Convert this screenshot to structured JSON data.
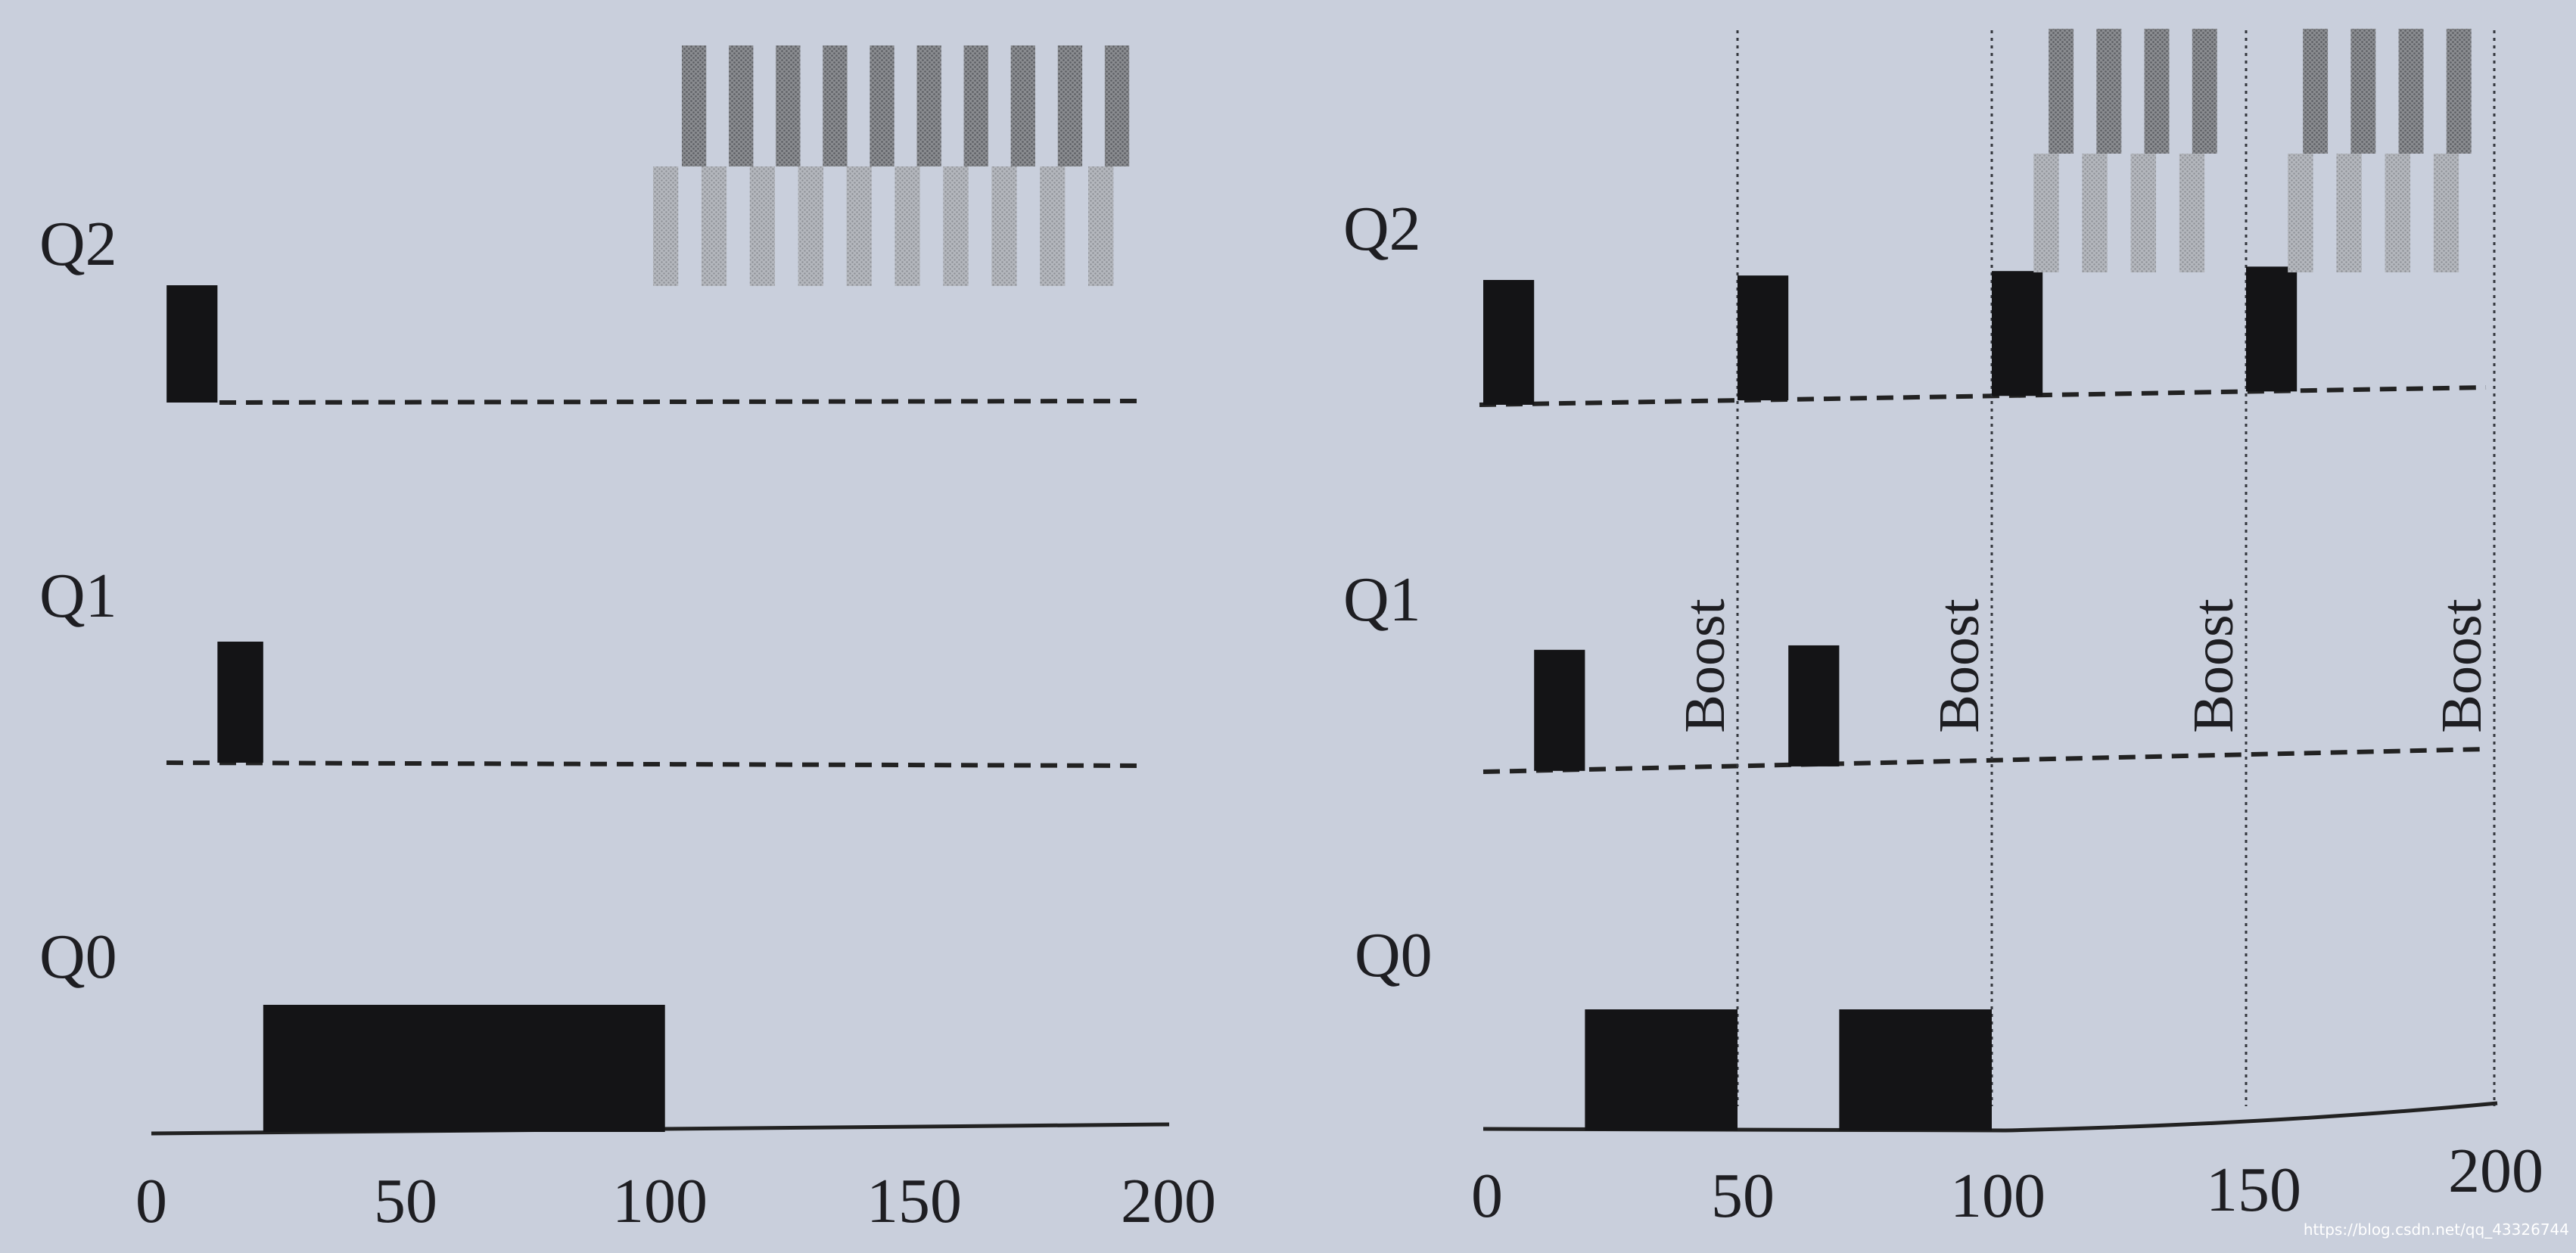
{
  "panels": [
    {
      "id": "without-boost",
      "queues": [
        "Q2",
        "Q1",
        "Q0"
      ],
      "x_axis": {
        "ticks": [
          "0",
          "50",
          "100",
          "150",
          "200"
        ],
        "range": [
          0,
          200
        ]
      },
      "jobs": [
        {
          "queue": "Q2",
          "start": 3,
          "end": 13
        },
        {
          "queue": "Q1",
          "start": 13,
          "end": 22
        },
        {
          "queue": "Q0",
          "start": 22,
          "end": 101
        }
      ],
      "cpu_bound_blocks": {
        "start": 100,
        "end": 198
      },
      "boosts": []
    },
    {
      "id": "with-boost",
      "queues": [
        "Q2",
        "Q1",
        "Q0"
      ],
      "x_axis": {
        "ticks": [
          "0",
          "50",
          "100",
          "150",
          "200"
        ],
        "range": [
          0,
          200
        ]
      },
      "jobs": [
        {
          "queue": "Q2",
          "start": 0,
          "end": 10
        },
        {
          "queue": "Q1",
          "start": 10,
          "end": 20
        },
        {
          "queue": "Q0",
          "start": 20,
          "end": 50
        },
        {
          "queue": "Q2",
          "start": 50,
          "end": 60
        },
        {
          "queue": "Q1",
          "start": 60,
          "end": 70
        },
        {
          "queue": "Q0",
          "start": 70,
          "end": 100
        },
        {
          "queue": "Q2",
          "start": 100,
          "end": 110
        },
        {
          "queue": "Q2",
          "start": 150,
          "end": 160
        }
      ],
      "cpu_bound_blocks_segments": [
        {
          "start": 110,
          "end": 150
        },
        {
          "start": 160,
          "end": 200
        }
      ],
      "boosts": [
        {
          "at": 50,
          "label": "Boost"
        },
        {
          "at": 100,
          "label": "Boost"
        },
        {
          "at": 150,
          "label": "Boost"
        },
        {
          "at": 200,
          "label": "Boost"
        }
      ]
    }
  ],
  "watermark": "https://blog.csdn.net/qq_43326744"
}
